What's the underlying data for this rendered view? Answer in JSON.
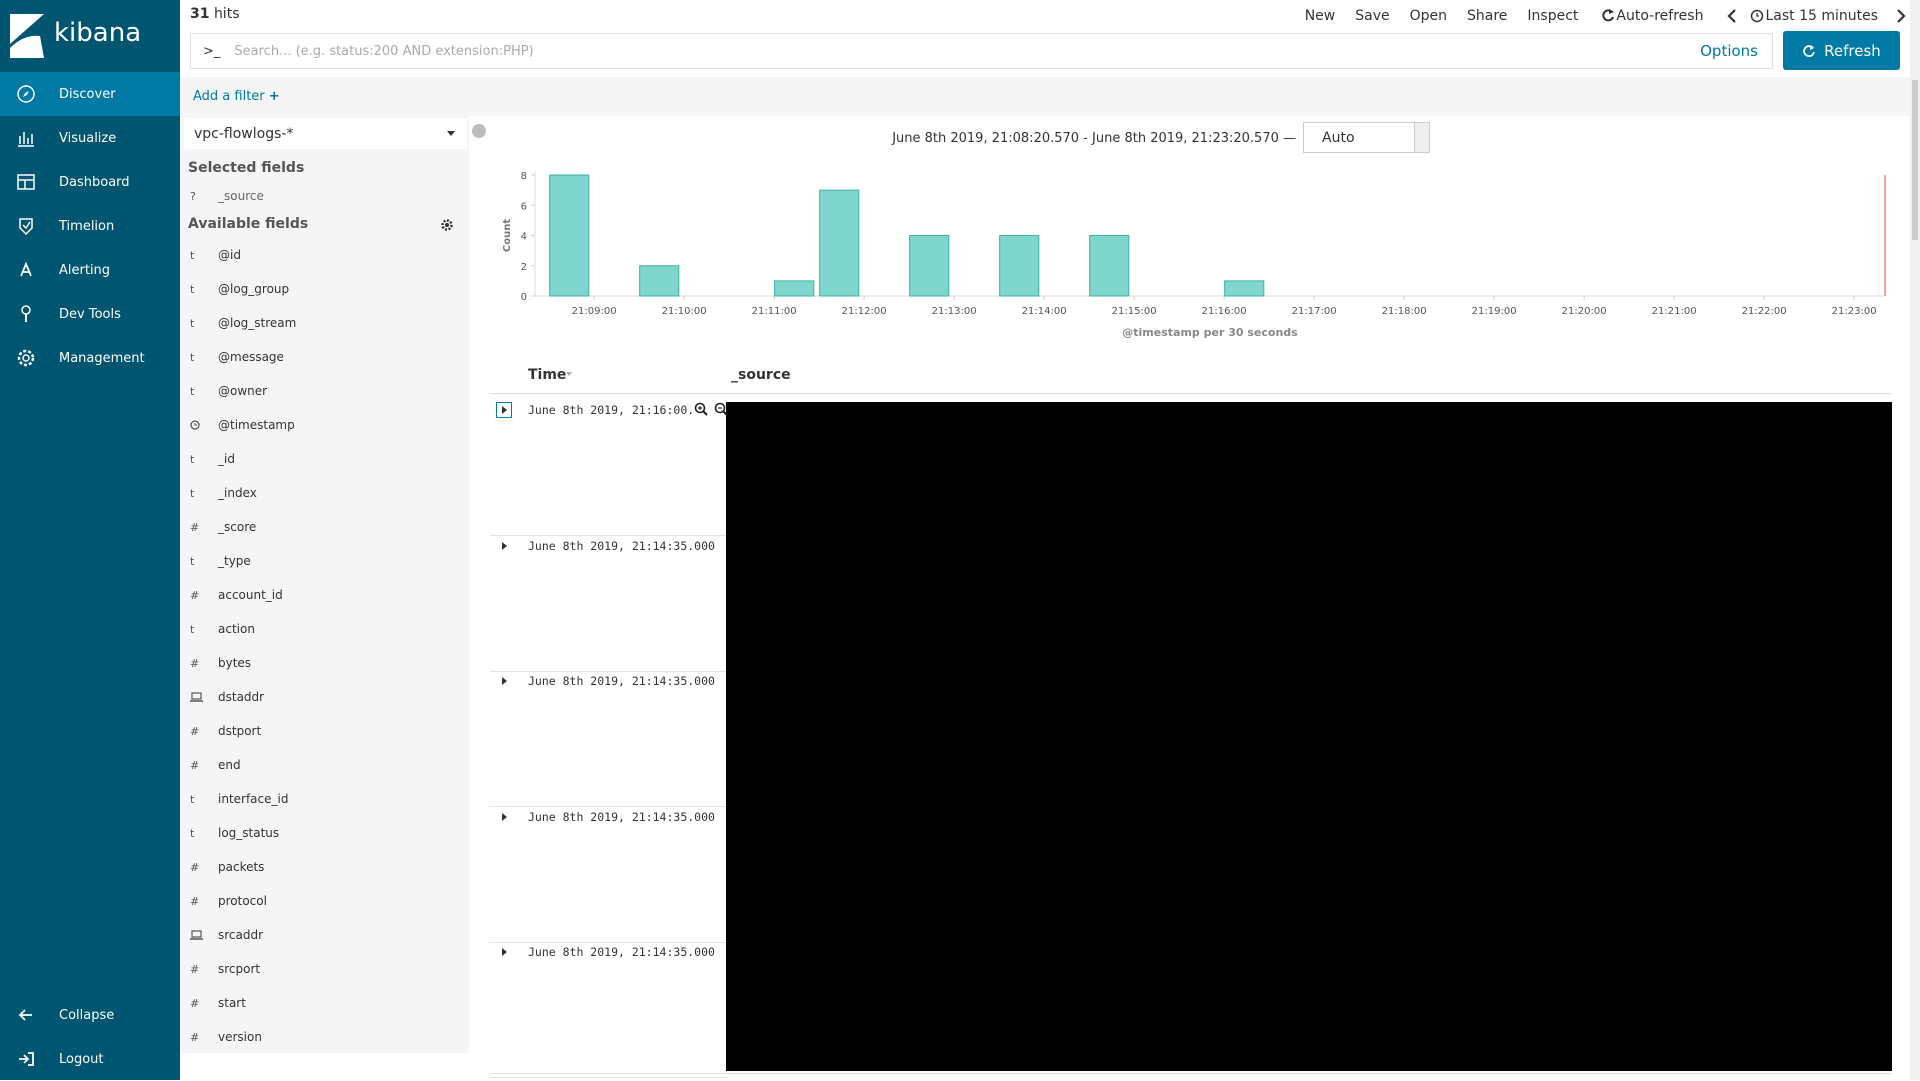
{
  "sidebar": {
    "brand": "kibana",
    "nav": [
      "Discover",
      "Visualize",
      "Dashboard",
      "Timelion",
      "Alerting",
      "Dev Tools",
      "Management"
    ],
    "active": 0,
    "footer": [
      "Collapse",
      "Logout"
    ]
  },
  "top_bar": {
    "hits": 31,
    "hits_label": "hits",
    "menu": [
      "New",
      "Save",
      "Open",
      "Share",
      "Inspect",
      "Auto-refresh"
    ],
    "time_picker": "Last 15 minutes"
  },
  "search": {
    "prompt": ">_",
    "placeholder": "Search... (e.g. status:200 AND extension:PHP)",
    "options": "Options",
    "refresh": "Refresh"
  },
  "filter_bar": {
    "add_filter": "Add a filter"
  },
  "field_panel": {
    "index_pattern": "vpc-flowlogs-*",
    "selected_heading": "Selected fields",
    "selected": [
      {
        "type": "?",
        "name": "_source"
      }
    ],
    "available_heading": "Available fields",
    "available": [
      {
        "type": "t",
        "name": "@id"
      },
      {
        "type": "t",
        "name": "@log_group"
      },
      {
        "type": "t",
        "name": "@log_stream"
      },
      {
        "type": "t",
        "name": "@message"
      },
      {
        "type": "t",
        "name": "@owner"
      },
      {
        "type": "date",
        "name": "@timestamp"
      },
      {
        "type": "t",
        "name": "_id"
      },
      {
        "type": "t",
        "name": "_index"
      },
      {
        "type": "#",
        "name": "_score"
      },
      {
        "type": "t",
        "name": "_type"
      },
      {
        "type": "#",
        "name": "account_id"
      },
      {
        "type": "t",
        "name": "action"
      },
      {
        "type": "#",
        "name": "bytes"
      },
      {
        "type": "ip",
        "name": "dstaddr"
      },
      {
        "type": "#",
        "name": "dstport"
      },
      {
        "type": "#",
        "name": "end"
      },
      {
        "type": "t",
        "name": "interface_id"
      },
      {
        "type": "t",
        "name": "log_status"
      },
      {
        "type": "#",
        "name": "packets"
      },
      {
        "type": "#",
        "name": "protocol"
      },
      {
        "type": "ip",
        "name": "srcaddr"
      },
      {
        "type": "#",
        "name": "srcport"
      },
      {
        "type": "#",
        "name": "start"
      },
      {
        "type": "#",
        "name": "version"
      }
    ]
  },
  "chart_data": {
    "type": "bar",
    "time_range": "June 8th 2019, 21:08:20.570 - June 8th 2019, 21:23:20.570 —",
    "interval": "Auto",
    "ylabel": "Count",
    "xlabel": "@timestamp per 30 seconds",
    "x": [
      "21:08:30",
      "21:09:30",
      "21:11:00",
      "21:11:30",
      "21:12:30",
      "21:13:30",
      "21:14:30",
      "21:16:00"
    ],
    "values": [
      8,
      2,
      1,
      7,
      4,
      4,
      4,
      1
    ],
    "color": "#7fd6cc",
    "border_color": "#3fb1a4",
    "xlim": [
      "21:08:20.570",
      "21:23:20.570"
    ],
    "xticks": [
      "21:09:00",
      "21:10:00",
      "21:11:00",
      "21:12:00",
      "21:13:00",
      "21:14:00",
      "21:15:00",
      "21:16:00",
      "21:17:00",
      "21:18:00",
      "21:19:00",
      "21:20:00",
      "21:21:00",
      "21:22:00",
      "21:23:00"
    ],
    "ylim": [
      0,
      8
    ],
    "yticks": [
      0,
      2,
      4,
      6,
      8
    ]
  },
  "table": {
    "columns": [
      "Time",
      "_source"
    ],
    "rows": [
      "June 8th 2019, 21:16:00.000",
      "June 8th 2019, 21:14:35.000",
      "June 8th 2019, 21:14:35.000",
      "June 8th 2019, 21:14:35.000",
      "June 8th 2019, 21:14:35.000"
    ]
  }
}
